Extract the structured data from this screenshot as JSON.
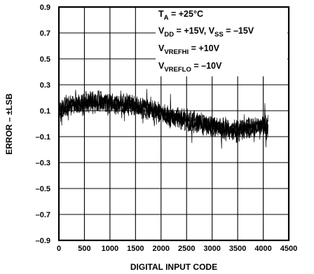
{
  "chart_data": {
    "type": "line",
    "title": "",
    "xlabel": "DIGITAL INPUT CODE",
    "ylabel": "ERROR – ±LSB",
    "xlim": [
      0,
      4500
    ],
    "ylim": [
      -0.9,
      0.9
    ],
    "x_ticks": [
      "0",
      "500",
      "1000",
      "1500",
      "2000",
      "2500",
      "3000",
      "3500",
      "4000",
      "4500"
    ],
    "y_ticks": [
      "0.9",
      "0.7",
      "0.5",
      "0.3",
      "0.1",
      "–0.1",
      "–0.3",
      "–0.5",
      "–0.7",
      "–0.9"
    ],
    "grid": true,
    "annotations": [
      {
        "main": "T",
        "sub": "A",
        "rest": " = +25°C"
      },
      {
        "main": "V",
        "sub": "DD",
        "rest": " = +15V, V",
        "sub2": "SS",
        "rest2": " = –15V"
      },
      {
        "main": "V",
        "sub": "VREFHI",
        "rest": " = +10V"
      },
      {
        "main": "V",
        "sub": "VREFLO",
        "rest": " = –10V"
      }
    ],
    "series": [
      {
        "x": [
          0,
          250,
          500,
          750,
          1000,
          1250,
          1500,
          1750,
          2000,
          2250,
          2500,
          2750,
          3000,
          3250,
          3500,
          3750,
          4095
        ],
        "y": [
          0.1,
          0.15,
          0.16,
          0.17,
          0.16,
          0.15,
          0.14,
          0.11,
          0.08,
          0.05,
          0.02,
          0.0,
          -0.02,
          -0.04,
          -0.05,
          -0.03,
          -0.01
        ]
      }
    ]
  }
}
